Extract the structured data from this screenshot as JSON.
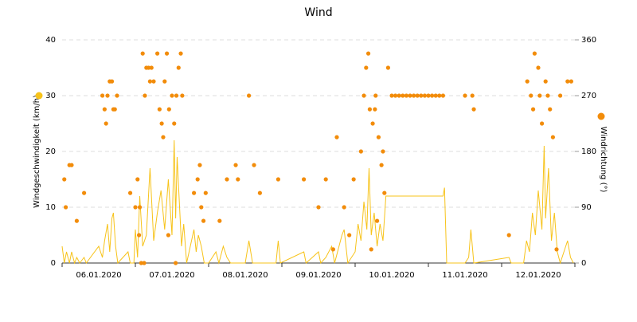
{
  "chart_data": {
    "type": "line_scatter",
    "title": "Wind",
    "ylabel": "Windgeschwindigkeit (km/h)",
    "y2label": "Windrichtung (°)",
    "xlim": [
      0,
      7
    ],
    "xticks": [
      {
        "value": 0.5,
        "label": "06.01.2020"
      },
      {
        "value": 1.5,
        "label": "07.01.2020"
      },
      {
        "value": 2.5,
        "label": "08.01.2020"
      },
      {
        "value": 3.5,
        "label": "09.01.2020"
      },
      {
        "value": 4.5,
        "label": "10.01.2020"
      },
      {
        "value": 5.5,
        "label": "11.01.2020"
      },
      {
        "value": 6.5,
        "label": "12.01.2020"
      }
    ],
    "ylim": [
      0,
      40
    ],
    "yticks": [
      0,
      10,
      20,
      30,
      40
    ],
    "y2lim": [
      0,
      360
    ],
    "y2ticks": [
      0,
      90,
      180,
      270,
      360
    ],
    "grid": true,
    "series": [
      {
        "name": "Windgeschwindigkeit",
        "type": "line",
        "color": "#f7c31a",
        "x": [
          0,
          0.03,
          0.06,
          0.1,
          0.13,
          0.17,
          0.2,
          0.24,
          0.3,
          0.33,
          0.5,
          0.55,
          0.58,
          0.62,
          0.65,
          0.68,
          0.7,
          0.73,
          0.76,
          0.9,
          0.93,
          0.98,
          1.0,
          1.03,
          1.06,
          1.1,
          1.15,
          1.2,
          1.25,
          1.3,
          1.35,
          1.4,
          1.45,
          1.5,
          1.53,
          1.55,
          1.57,
          1.6,
          1.63,
          1.66,
          1.7,
          1.8,
          1.83,
          1.86,
          1.9,
          1.94,
          2.0,
          2.1,
          2.14,
          2.2,
          2.25,
          2.3,
          2.5,
          2.55,
          2.6,
          2.92,
          2.95,
          2.98,
          3.3,
          3.33,
          3.5,
          3.53,
          3.6,
          3.68,
          3.72,
          3.82,
          3.85,
          3.9,
          4.0,
          4.04,
          4.08,
          4.12,
          4.16,
          4.19,
          4.22,
          4.26,
          4.3,
          4.34,
          4.38,
          4.41,
          4.42,
          5.2,
          5.22,
          5.25,
          5.5,
          5.55,
          5.58,
          5.62,
          6.1,
          6.13,
          6.3,
          6.34,
          6.38,
          6.42,
          6.46,
          6.5,
          6.55,
          6.58,
          6.6,
          6.64,
          6.68,
          6.72,
          6.76,
          6.8,
          6.9,
          6.94,
          6.98
        ],
        "values": [
          3,
          0,
          2,
          0,
          2,
          0,
          1,
          0,
          1,
          0,
          3,
          1,
          4,
          7,
          2,
          8,
          9,
          3,
          0,
          2,
          0,
          0,
          6,
          1,
          12,
          3,
          5,
          17,
          4,
          9,
          13,
          6,
          15,
          5,
          22,
          8,
          19,
          11,
          3,
          7,
          0,
          6,
          2,
          5,
          3,
          0,
          0,
          2,
          0,
          3,
          1,
          0,
          0,
          4,
          0,
          0,
          4,
          0,
          2,
          0,
          2,
          0,
          1,
          3,
          0,
          5,
          6,
          0,
          2,
          7,
          4,
          11,
          6,
          17,
          5,
          9,
          3,
          7,
          4,
          10,
          12,
          12,
          13.5,
          0,
          0,
          1,
          6,
          0,
          1,
          0,
          0,
          4,
          2,
          9,
          5,
          13,
          6,
          21,
          8,
          17,
          4,
          9,
          2,
          0,
          4,
          1,
          0
        ]
      },
      {
        "name": "Windrichtung",
        "type": "scatter",
        "axis": "y2",
        "color": "#f28c0a",
        "x": [
          0.03,
          0.05,
          0.1,
          0.13,
          0.2,
          0.3,
          0.55,
          0.58,
          0.6,
          0.62,
          0.65,
          0.68,
          0.7,
          0.72,
          0.75,
          0.93,
          1.0,
          1.03,
          1.06,
          1.1,
          1.13,
          1.15,
          1.18,
          1.2,
          1.22,
          1.25,
          1.3,
          1.33,
          1.36,
          1.38,
          1.4,
          1.43,
          1.46,
          1.5,
          1.53,
          1.56,
          1.59,
          1.62,
          1.64,
          1.05,
          1.08,
          1.12,
          1.45,
          1.55,
          1.8,
          1.85,
          1.88,
          1.9,
          1.93,
          1.96,
          2.15,
          2.25,
          2.37,
          2.4,
          2.55,
          2.62,
          2.7,
          2.95,
          3.3,
          3.5,
          3.6,
          3.7,
          3.75,
          3.85,
          3.92,
          3.98,
          4.08,
          4.12,
          4.15,
          4.18,
          4.2,
          4.24,
          4.28,
          4.32,
          4.36,
          4.38,
          4.45,
          4.4,
          4.3,
          4.22,
          4.27,
          4.5,
          4.55,
          4.6,
          4.65,
          4.7,
          4.75,
          4.8,
          4.85,
          4.9,
          4.95,
          5.0,
          5.05,
          5.1,
          5.15,
          5.2,
          5.5,
          5.6,
          5.62,
          6.1,
          6.35,
          6.4,
          6.43,
          6.45,
          6.5,
          6.52,
          6.55,
          6.6,
          6.63,
          6.66,
          6.7,
          6.8,
          6.9,
          6.95,
          6.75
        ],
        "values": [
          135,
          90,
          158,
          158,
          68,
          113,
          270,
          248,
          225,
          270,
          293,
          293,
          248,
          248,
          270,
          113,
          90,
          135,
          90,
          338,
          270,
          315,
          315,
          293,
          315,
          293,
          338,
          248,
          225,
          203,
          293,
          338,
          248,
          270,
          225,
          270,
          315,
          338,
          270,
          45,
          0,
          0,
          45,
          0,
          113,
          135,
          158,
          90,
          68,
          113,
          68,
          135,
          158,
          135,
          270,
          158,
          113,
          135,
          135,
          90,
          135,
          22,
          203,
          90,
          45,
          135,
          180,
          270,
          315,
          338,
          248,
          225,
          270,
          203,
          158,
          180,
          315,
          113,
          68,
          22,
          248,
          270,
          270,
          270,
          270,
          270,
          270,
          270,
          270,
          270,
          270,
          270,
          270,
          270,
          270,
          270,
          270,
          270,
          248,
          45,
          293,
          270,
          248,
          338,
          315,
          270,
          225,
          293,
          270,
          248,
          203,
          270,
          293,
          293,
          22
        ]
      }
    ]
  }
}
